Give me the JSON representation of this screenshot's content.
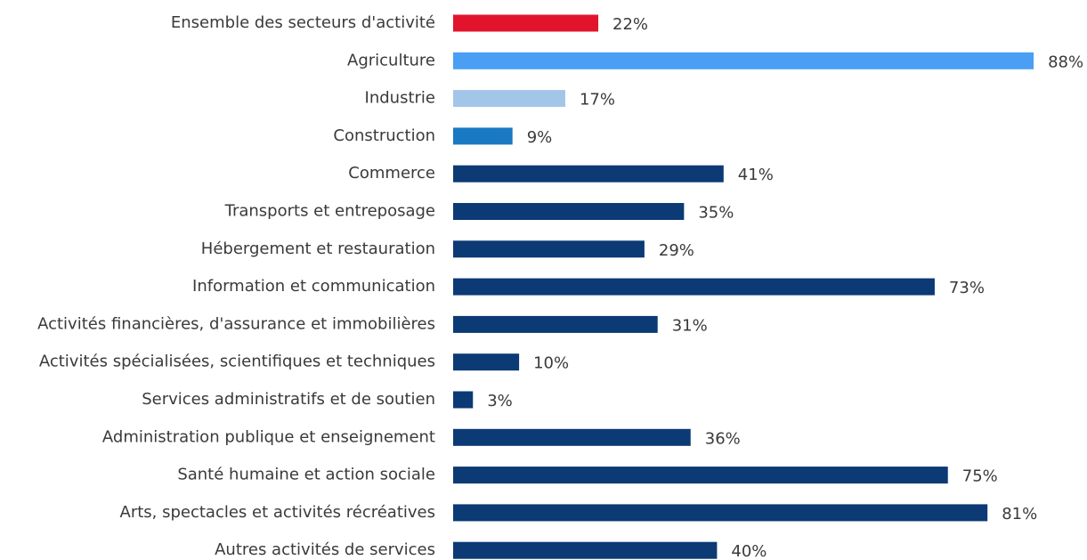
{
  "chart_data": {
    "type": "barh",
    "categories": [
      "Ensemble des secteurs d'activité",
      "Agriculture",
      "Industrie",
      "Construction",
      "Commerce",
      "Transports et entreposage",
      "Hébergement et restauration",
      "Information et communication",
      "Activités financières, d'assurance et immobilières",
      "Activités spécialisées, scientifiques et techniques",
      "Services administratifs et de soutien",
      "Administration publique et enseignement",
      "Santé humaine et action sociale",
      "Arts, spectacles et activités récréatives",
      "Autres activités de services"
    ],
    "values": [
      22,
      88,
      17,
      9,
      41,
      35,
      29,
      73,
      31,
      10,
      3,
      36,
      75,
      81,
      40
    ],
    "value_labels": [
      "22%",
      "88%",
      "17%",
      "9%",
      "41%",
      "35%",
      "29%",
      "73%",
      "31%",
      "10%",
      "3%",
      "36%",
      "75%",
      "81%",
      "40%"
    ],
    "colors": [
      "#e2142d",
      "#4a9ff5",
      "#a3c5e8",
      "#1a79c3",
      "#0b3a75",
      "#0b3a75",
      "#0b3a75",
      "#0b3a75",
      "#0b3a75",
      "#0b3a75",
      "#0b3a75",
      "#0b3a75",
      "#0b3a75",
      "#0b3a75",
      "#0b3a75"
    ]
  }
}
